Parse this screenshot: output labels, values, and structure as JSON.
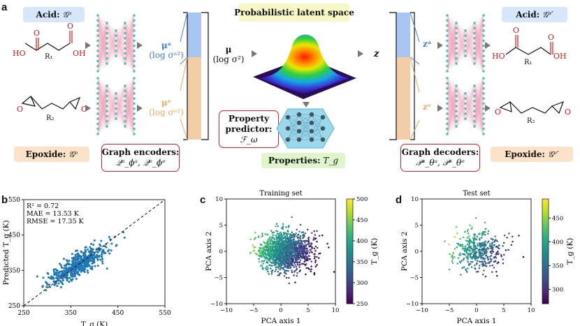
{
  "panel_a": {
    "letter": "a",
    "acid_label": "Acid:",
    "acid_symbol": "𝒢ᵃ",
    "epoxide_label": "Epoxide:",
    "epoxide_symbol": "𝒢ᵉ",
    "acid_out_symbol": "𝒢ᵃ′",
    "epoxide_out_symbol": "𝒢ᵉ′",
    "latent_title": "Probabilistic latent space",
    "mu_acid": "μᵃ",
    "logsig_acid": "(log σᵃ²)",
    "mu_epox": "μᵉ",
    "logsig_epox": "(log σᵉ²)",
    "mu_all": "μ",
    "logsig_all": "(log σ²)",
    "z": "z",
    "z_acid": "zᵃ",
    "z_epox": "zᵉ",
    "encoders_title": "Graph encoders:",
    "encoders_formula": "𝒬ᵃ_ϕᵃ, 𝒬ᵉ_ϕᵉ",
    "decoders_title": "Graph decoders:",
    "decoders_formula": "𝒫ᵃ_θᵃ, 𝒫ᵉ_θᵉ",
    "predictor_line1": "Property",
    "predictor_line2": "predictor:",
    "predictor_symbol": "ℱ_ω",
    "properties_label": "Properties:",
    "properties_symbol": "T_g",
    "mol_acid_O1": "O",
    "mol_acid_O2": "O",
    "mol_acid_HO1": "HO",
    "mol_acid_OH2": "OH",
    "mol_acid_R": "R₁",
    "mol_epox_O1": "O",
    "mol_epox_O2": "O",
    "mol_epox_R": "R₂"
  },
  "chart_data": [
    {
      "panel": "b",
      "type": "scatter",
      "title": "",
      "xlabel": "T_g (K)",
      "ylabel": "Predicted T_g (K)",
      "xlim": [
        250,
        550
      ],
      "ylim": [
        250,
        550
      ],
      "xticks": [
        "250",
        "350",
        "450",
        "550"
      ],
      "yticks": [
        "250",
        "350",
        "450",
        "550"
      ],
      "stats": [
        "R² = 0.72",
        "MAE = 13.53 K",
        "RMSE = 17.35 K"
      ],
      "reference_line": "y = x (dashed)",
      "point_color": "#1f77b4",
      "n_points": 520,
      "x_mean": 367,
      "x_sd": 32,
      "slope": 0.72,
      "noise_sd": 17
    },
    {
      "panel": "c",
      "type": "scatter",
      "title": "Training set",
      "xlabel": "PCA axis 1",
      "ylabel": "PCA axis 2",
      "xlim": [
        -10,
        10
      ],
      "ylim": [
        -10,
        10
      ],
      "xticks": [
        "−10",
        "−5",
        "0",
        "5",
        "10"
      ],
      "yticks": [
        "−10",
        "−5",
        "0",
        "5",
        "10"
      ],
      "colorbar_label": "T_g (K)",
      "colorbar_range": [
        250,
        500
      ],
      "colorbar_ticks": [
        "250",
        "300",
        "350",
        "400",
        "450",
        "500"
      ],
      "colormap": "viridis",
      "n_points": 1400,
      "center": [
        0.5,
        0
      ]
    },
    {
      "panel": "d",
      "type": "scatter",
      "title": "Test set",
      "xlabel": "PCA axis 1",
      "ylabel": "PCA axis 2",
      "xlim": [
        -10,
        10
      ],
      "ylim": [
        -10,
        10
      ],
      "xticks": [
        "−10",
        "−5",
        "0",
        "5",
        "10"
      ],
      "yticks": [
        "−10",
        "−5",
        "0",
        "5",
        "10"
      ],
      "colorbar_label": "T_g (K)",
      "colorbar_range": [
        270,
        490
      ],
      "colorbar_ticks": [
        "300",
        "350",
        "400",
        "450"
      ],
      "colormap": "viridis",
      "n_points": 420,
      "center": [
        0.3,
        0
      ]
    }
  ]
}
